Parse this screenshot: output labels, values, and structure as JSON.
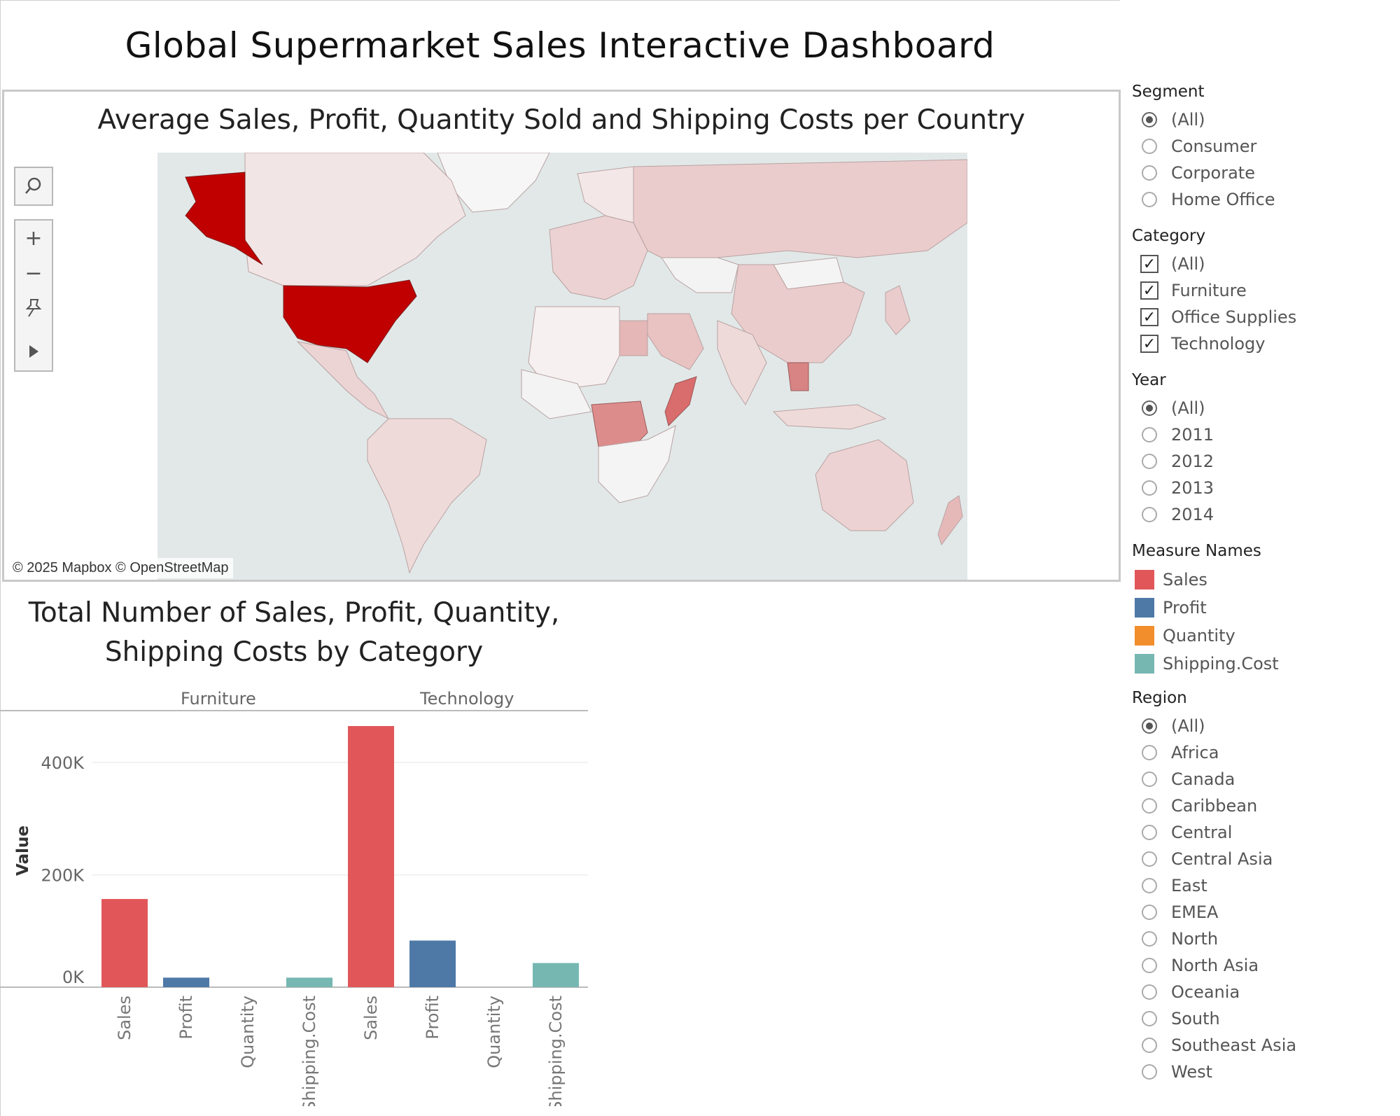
{
  "dashboard": {
    "title": "Global Supermarket Sales Interactive Dashboard"
  },
  "map": {
    "title": "Average Sales, Profit, Quantity Sold and Shipping Costs per Country",
    "attribution": "© 2025 Mapbox © OpenStreetMap",
    "tools": [
      "search-icon",
      "zoom-in-icon",
      "zoom-out-icon",
      "pin-icon",
      "play-icon"
    ],
    "highlight_color": "#c00000"
  },
  "bar_panel": {
    "title_line1": "Total Number of Sales, Profit, Quantity,",
    "title_line2": "Shipping Costs by Category"
  },
  "chart_data": {
    "type": "bar",
    "panels": [
      "Furniture",
      "Technology"
    ],
    "categories": [
      "Sales",
      "Profit",
      "Quantity",
      "Shipping.Cost"
    ],
    "series": [
      {
        "name": "Furniture",
        "values": [
          157000,
          17000,
          0,
          17000
        ]
      },
      {
        "name": "Technology",
        "values": [
          465000,
          83000,
          0,
          43000
        ]
      }
    ],
    "colors": {
      "Sales": "#e15759",
      "Profit": "#4e79a7",
      "Quantity": "#f28e2b",
      "Shipping.Cost": "#76b7b2"
    },
    "ylabel": "Value",
    "yticks": [
      "0K",
      "200K",
      "400K"
    ],
    "ylim": [
      0,
      480000
    ],
    "grid": true
  },
  "filters": {
    "segment": {
      "title": "Segment",
      "options": [
        "(All)",
        "Consumer",
        "Corporate",
        "Home Office"
      ],
      "selected": 0
    },
    "category": {
      "title": "Category",
      "options": [
        "(All)",
        "Furniture",
        "Office Supplies",
        "Technology"
      ]
    },
    "year": {
      "title": "Year",
      "options": [
        "(All)",
        "2011",
        "2012",
        "2013",
        "2014"
      ],
      "selected": 0
    },
    "measure_names": {
      "title": "Measure Names",
      "items": [
        "Sales",
        "Profit",
        "Quantity",
        "Shipping.Cost"
      ]
    },
    "region": {
      "title": "Region",
      "options": [
        "(All)",
        "Africa",
        "Canada",
        "Caribbean",
        "Central",
        "Central Asia",
        "East",
        "EMEA",
        "North",
        "North Asia",
        "Oceania",
        "South",
        "Southeast Asia",
        "West"
      ],
      "selected": 0
    }
  }
}
